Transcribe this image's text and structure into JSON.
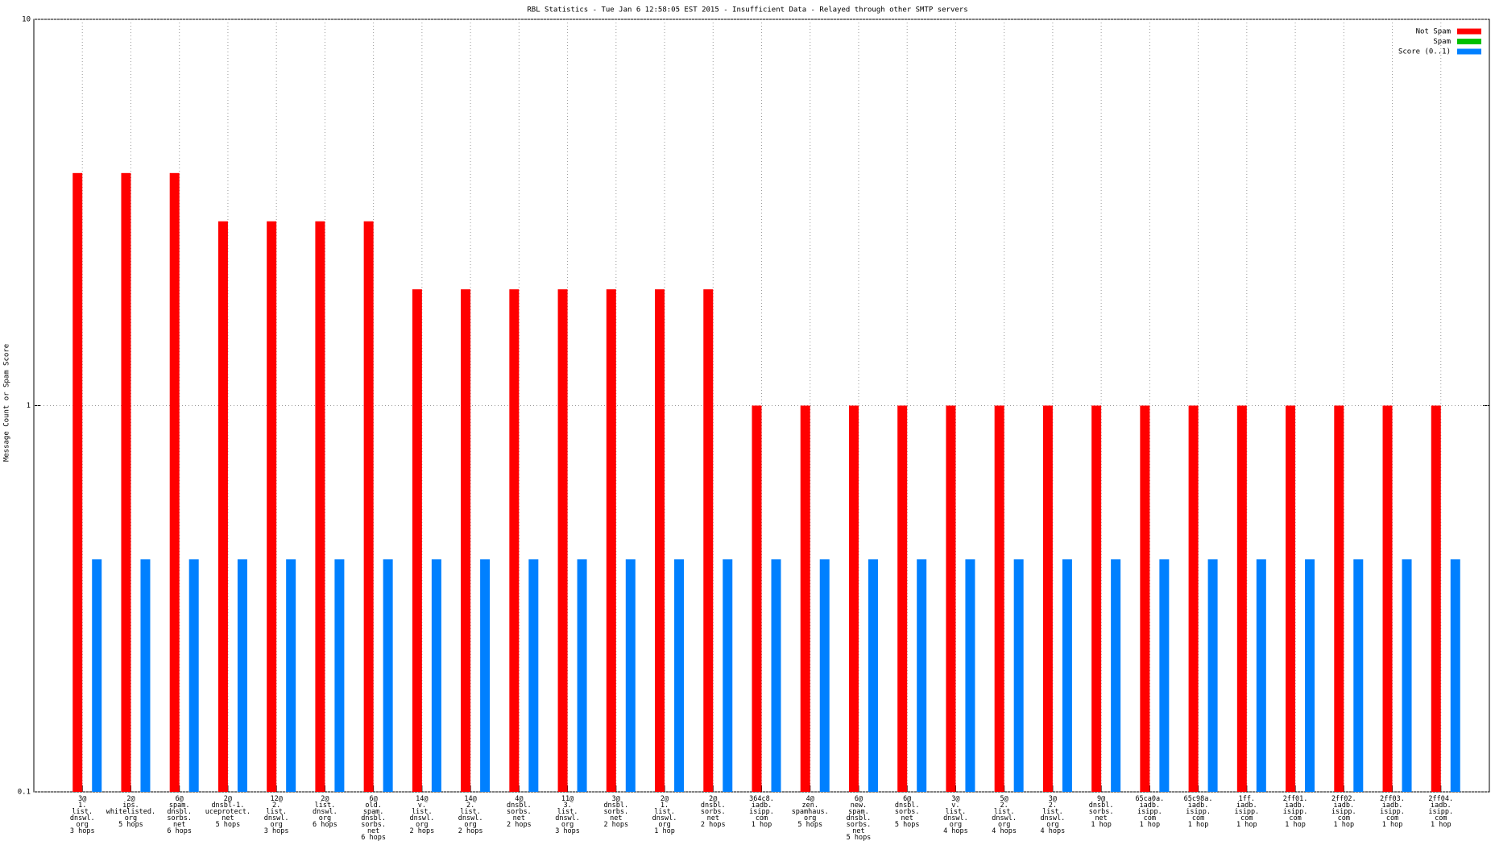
{
  "chart_data": {
    "type": "bar",
    "title": "RBL Statistics - Tue Jan  6 12:58:05 EST 2015 - Insufficient Data - Relayed through other SMTP servers",
    "y_label": "Message Count or Spam Score",
    "log_scale": true,
    "ylim": [
      0.1,
      10
    ],
    "yticks": [
      0.1,
      1,
      10
    ],
    "grid": true,
    "legend": "top-right",
    "categories": [
      "3@\n1.\nlist.\ndnswl.\norg\n3 hops",
      "2@\nips.\nwhitelisted.\norg\n5 hops",
      "6@\nspam.\ndnsbl.\nsorbs.\nnet\n6 hops",
      "2@\ndnsbl-1.\nuceprotect.\nnet\n5 hops",
      "12@\n2.\nlist.\ndnswl.\norg\n3 hops",
      "2@\nlist.\ndnswl.\norg\n6 hops",
      "6@\nold.\nspam.\ndnsbl.\nsorbs.\nnet\n6 hops",
      "14@\nv.\nlist.\ndnswl.\norg\n2 hops",
      "14@\n2.\nlist.\ndnswl.\norg\n2 hops",
      "4@\ndnsbl.\nsorbs.\nnet\n2 hops",
      "11@\n3.\nlist.\ndnswl.\norg\n3 hops",
      "3@\ndnsbl.\nsorbs.\nnet\n2 hops",
      "2@\n1.\nlist.\ndnswl.\norg\n1 hop",
      "2@\ndnsbl.\nsorbs.\nnet\n2 hops",
      "364c8.\niadb.\nisipp.\ncom\n1 hop",
      "4@\nzen.\nspamhaus.\norg\n5 hops",
      "6@\nnew.\nspam.\ndnsbl.\nsorbs.\nnet\n5 hops",
      "6@\ndnsbl.\nsorbs.\nnet\n5 hops",
      "3@\nv.\nlist.\ndnswl.\norg\n4 hops",
      "5@\n2.\nlist.\ndnswl.\norg\n4 hops",
      "3@\n2.\nlist.\ndnswl.\norg\n4 hops",
      "9@\ndnsbl.\nsorbs.\nnet\n1 hop",
      "65ca0a.\niadb.\nisipp.\ncom\n1 hop",
      "65c98a.\niadb.\nisipp.\ncom\n1 hop",
      "1ff.\niadb.\nisipp.\ncom\n1 hop",
      "2ff01.\niadb.\nisipp.\ncom\n1 hop",
      "2ff02.\niadb.\nisipp.\ncom\n1 hop",
      "2ff03.\niadb.\nisipp.\ncom\n1 hop",
      "2ff04.\niadb.\nisipp.\ncom\n1 hop"
    ],
    "series": [
      {
        "name": "Not Spam",
        "color": "#ff0000",
        "values": [
          4,
          4,
          4,
          3,
          3,
          3,
          3,
          2,
          2,
          2,
          2,
          2,
          2,
          2,
          1,
          1,
          1,
          1,
          1,
          1,
          1,
          1,
          1,
          1,
          1,
          1,
          1,
          1,
          1
        ]
      },
      {
        "name": "Spam",
        "color": "#00c000",
        "values": [
          null,
          null,
          null,
          null,
          null,
          null,
          null,
          null,
          null,
          null,
          null,
          null,
          null,
          null,
          null,
          null,
          null,
          null,
          null,
          null,
          null,
          null,
          null,
          null,
          null,
          null,
          null,
          null,
          null
        ]
      },
      {
        "name": "Score (0..1)",
        "color": "#0080ff",
        "values": [
          0.4,
          0.4,
          0.4,
          0.4,
          0.4,
          0.4,
          0.4,
          0.4,
          0.4,
          0.4,
          0.4,
          0.4,
          0.4,
          0.4,
          0.4,
          0.4,
          0.4,
          0.4,
          0.4,
          0.4,
          0.4,
          0.4,
          0.4,
          0.4,
          0.4,
          0.4,
          0.4,
          0.4,
          0.4
        ]
      }
    ]
  }
}
